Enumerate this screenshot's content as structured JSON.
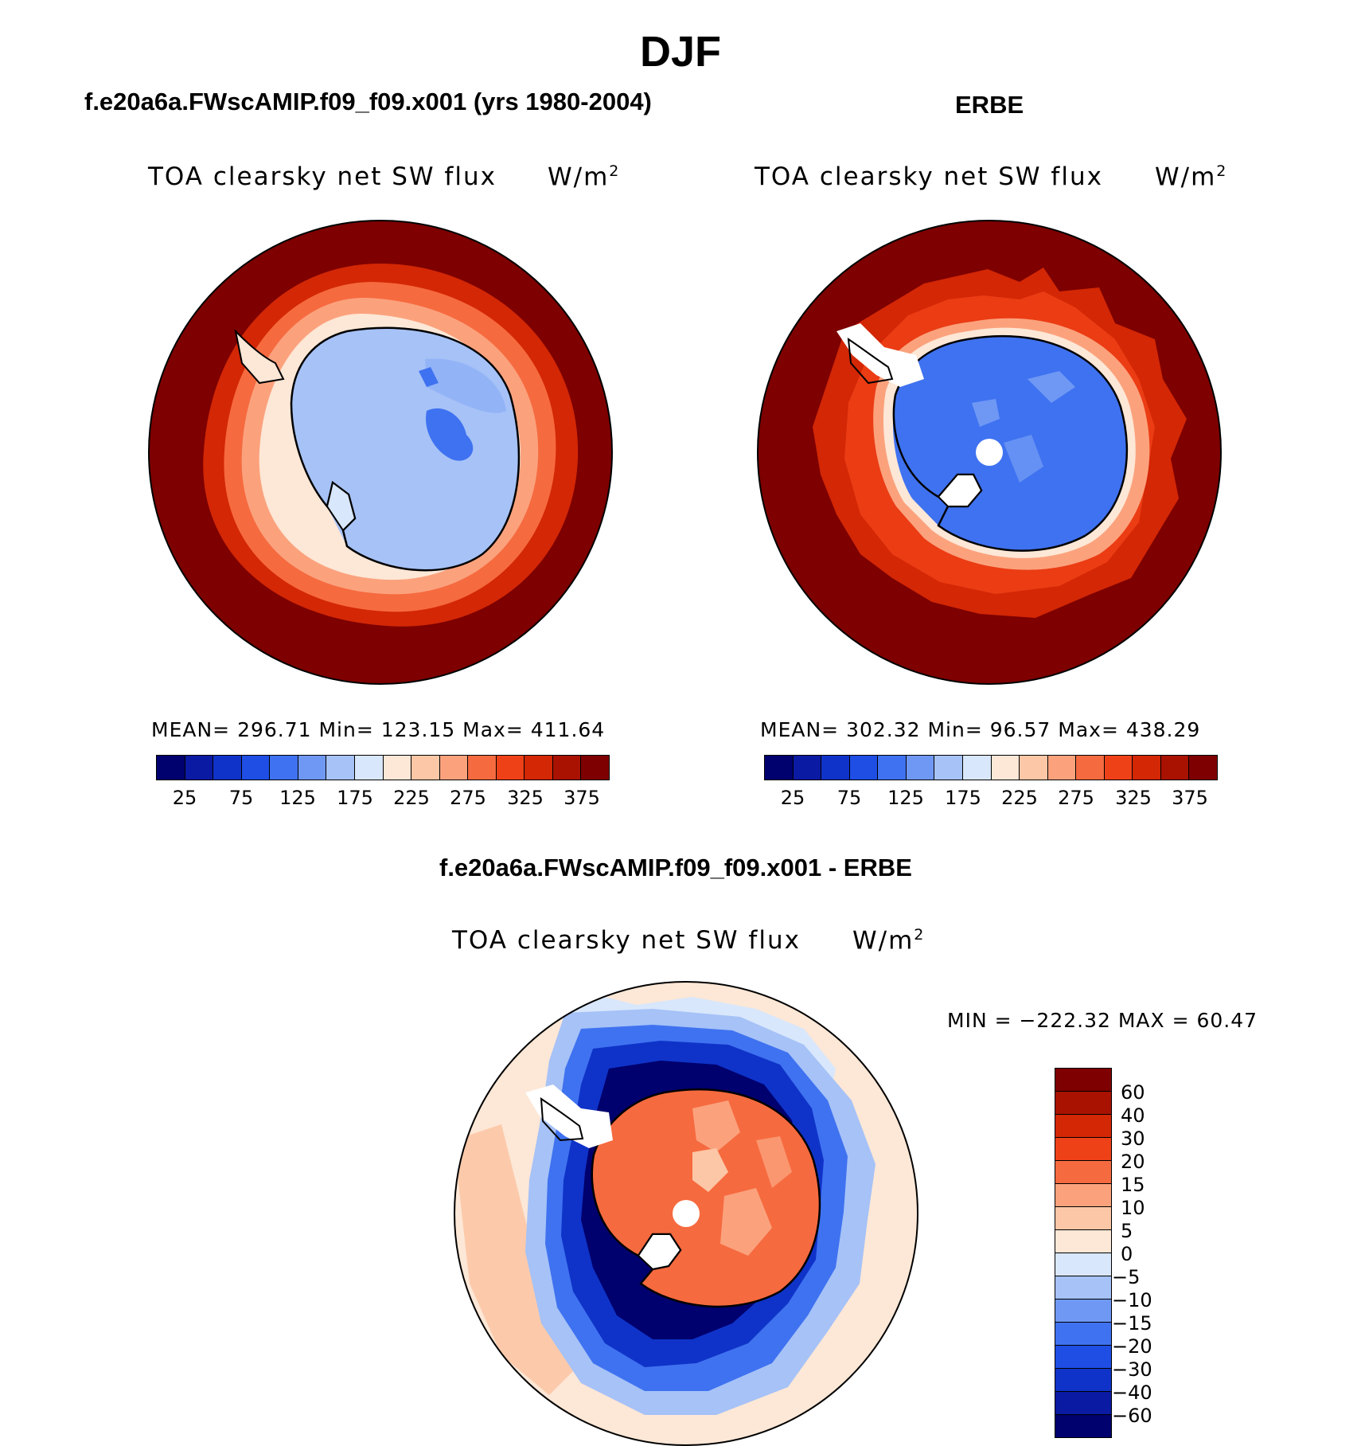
{
  "title": "DJF",
  "colors": {
    "diverging_palette": [
      "#00006e",
      "#0a1aa3",
      "#0f33c8",
      "#1e4ee4",
      "#3f72f0",
      "#6f98f5",
      "#a6c2f7",
      "#d8e7fb",
      "#fde7d6",
      "#fcc7a6",
      "#fba27d",
      "#f66a3f",
      "#ef4118",
      "#d32705",
      "#a91201",
      "#7e0000"
    ],
    "map_outline": "#000000"
  },
  "panels": {
    "model": {
      "title": "f.e20a6a.FWscAMIP.f09_f09.x001 (yrs 1980-2004)",
      "variable": "TOA clearsky net SW flux",
      "units_base": "W/m",
      "units_sup": "2",
      "stats": "MEAN= 296.71   Min= 123.15   Max= 411.64",
      "ticks": [
        "25",
        "75",
        "125",
        "175",
        "225",
        "275",
        "325",
        "375"
      ]
    },
    "obs": {
      "title": "ERBE",
      "variable": "TOA clearsky net SW flux",
      "units_base": "W/m",
      "units_sup": "2",
      "stats": "MEAN= 302.32   Min=   96.57   Max= 438.29",
      "ticks": [
        "25",
        "75",
        "125",
        "175",
        "225",
        "275",
        "325",
        "375"
      ]
    },
    "diff": {
      "title": "f.e20a6a.FWscAMIP.f09_f09.x001 - ERBE",
      "variable": "TOA clearsky net SW flux",
      "units_base": "W/m",
      "units_sup": "2",
      "stats": "MIN = −222.32 MAX =   60.47",
      "levels": [
        "60",
        "40",
        "30",
        "20",
        "15",
        "10",
        "5",
        "0",
        "−5",
        "−10",
        "−15",
        "−20",
        "−30",
        "−40",
        "−60"
      ]
    }
  }
}
